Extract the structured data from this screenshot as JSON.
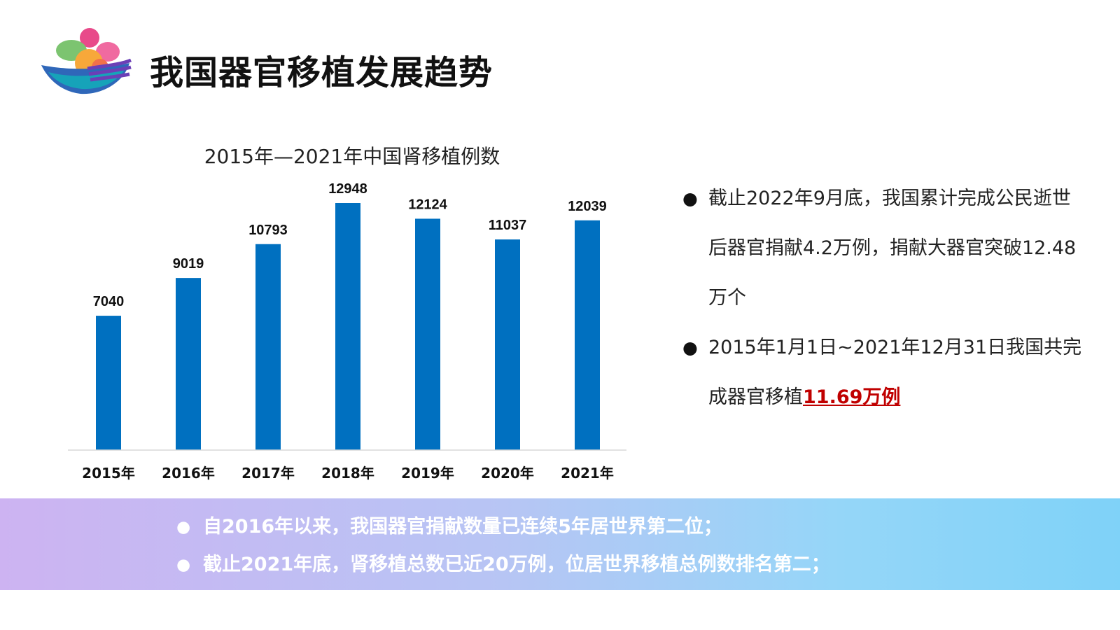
{
  "header": {
    "title": "我国器官移植发展趋势"
  },
  "chart_data": {
    "type": "bar",
    "title": "2015年—2021年中国肾移植例数",
    "categories": [
      "2015年",
      "2016年",
      "2017年",
      "2018年",
      "2019年",
      "2020年",
      "2021年"
    ],
    "values": [
      7040,
      9019,
      10793,
      12948,
      12124,
      11037,
      12039
    ],
    "data_labels": [
      "7040",
      "9019",
      "10793",
      "12948",
      "12124",
      "11037",
      "12039"
    ],
    "xlabel": "",
    "ylabel": "",
    "ylim": [
      0,
      13500
    ],
    "grid": false,
    "legend": "none",
    "bar_color": "#0070c0"
  },
  "bullets": [
    {
      "text": "截止2022年9月底，我国累计完成公民逝世后器官捐献4.2万例，捐献大器官突破12.48万个"
    },
    {
      "text": "2015年1月1日~2021年12月31日我国共完成器官移植",
      "highlight": "11.69万例"
    }
  ],
  "footer": {
    "items": [
      "自2016年以来，我国器官捐献数量已连续5年居世界第二位；",
      "截止2021年底，肾移植总数已近20万例，位居世界移植总例数排名第二；"
    ]
  },
  "colors": {
    "accent_red": "#c00000",
    "band_gradient_start": "#cdb3f2",
    "band_gradient_end": "#7fd2f8"
  }
}
